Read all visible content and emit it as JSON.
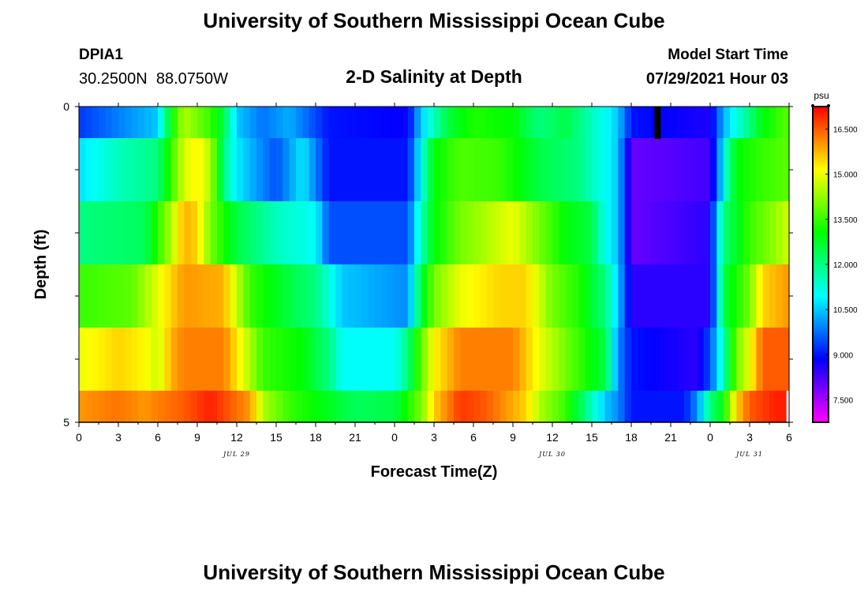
{
  "header": {
    "title": "University of Southern Mississippi Ocean Cube",
    "station_id": "DPIA1",
    "coordinates": "30.2500N  88.0750W",
    "chart_title": "2-D Salinity at Depth",
    "model_start_label": "Model Start Time",
    "model_start_value": "07/29/2021 Hour 03"
  },
  "footer": {
    "title": "University of Southern Mississippi Ocean Cube"
  },
  "colors": {
    "background": "#ffffff",
    "axis": "#000000",
    "marker": "#000000"
  },
  "chart_data": {
    "type": "heatmap",
    "title": "2-D Salinity at Depth",
    "xlabel": "Forecast Time(Z)",
    "ylabel": "Depth (ft)",
    "x_tick_labels": [
      "0",
      "3",
      "6",
      "9",
      "12",
      "15",
      "18",
      "21",
      "0",
      "3",
      "6",
      "9",
      "12",
      "15",
      "18",
      "21",
      "0",
      "3",
      "6"
    ],
    "date_labels": [
      {
        "label": "JUL 29",
        "tick_index": 4
      },
      {
        "label": "JUL 30",
        "tick_index": 12
      },
      {
        "label": "JUL 31",
        "tick_index": 17
      }
    ],
    "x_range_hours": [
      0,
      54
    ],
    "y_tick_labels": [
      "0",
      "5"
    ],
    "y_range_ft": [
      0,
      5
    ],
    "depth_rows_ft": [
      0.25,
      1.0,
      2.0,
      3.0,
      4.0,
      4.75
    ],
    "colorbar": {
      "unit": "psu",
      "min": 6.75,
      "max": 17.25,
      "tick_values": [
        "16.500",
        "15.000",
        "13.500",
        "12.000",
        "10.500",
        "9.000",
        "7.500"
      ]
    },
    "series": [
      {
        "name": "depth 0.25 ft",
        "keys": [
          [
            0,
            9.3
          ],
          [
            6,
            10.5
          ],
          [
            7,
            13
          ],
          [
            8,
            14.5
          ],
          [
            10,
            13.5
          ],
          [
            11,
            12.5
          ],
          [
            12,
            10.5
          ],
          [
            14,
            9.8
          ],
          [
            16,
            10.3
          ],
          [
            19,
            9
          ],
          [
            25,
            8.8
          ],
          [
            26,
            10.5
          ],
          [
            27,
            11.5
          ],
          [
            28,
            12.5
          ],
          [
            30,
            13.3
          ],
          [
            33,
            13
          ],
          [
            35,
            12
          ],
          [
            37,
            12.5
          ],
          [
            40,
            11
          ],
          [
            41,
            10.5
          ],
          [
            42,
            9
          ],
          [
            48,
            8.6
          ],
          [
            49,
            10.3
          ],
          [
            51,
            12
          ],
          [
            52,
            13
          ],
          [
            54,
            13.8
          ]
        ]
      },
      {
        "name": "depth 1 ft",
        "keys": [
          [
            0,
            10.7
          ],
          [
            3,
            11.5
          ],
          [
            6,
            12
          ],
          [
            7,
            13.5
          ],
          [
            8,
            14.8
          ],
          [
            9,
            15.3
          ],
          [
            10,
            14.5
          ],
          [
            11,
            12
          ],
          [
            12,
            10.8
          ],
          [
            15,
            9.5
          ],
          [
            17,
            10.8
          ],
          [
            19,
            9
          ],
          [
            25,
            9
          ],
          [
            26,
            11
          ],
          [
            27,
            13
          ],
          [
            29,
            13.7
          ],
          [
            32,
            13.5
          ],
          [
            35,
            12.5
          ],
          [
            38,
            12
          ],
          [
            40,
            11
          ],
          [
            41,
            10.5
          ],
          [
            42,
            8
          ],
          [
            48,
            8.3
          ],
          [
            48.5,
            9.5
          ],
          [
            49,
            11
          ],
          [
            50,
            13
          ],
          [
            52,
            13.5
          ],
          [
            54,
            13.8
          ]
        ]
      },
      {
        "name": "depth 2 ft",
        "keys": [
          [
            0,
            12
          ],
          [
            5,
            12.3
          ],
          [
            7,
            14.5
          ],
          [
            8,
            15.8
          ],
          [
            9,
            15.5
          ],
          [
            10,
            14
          ],
          [
            12,
            12.5
          ],
          [
            15,
            11.5
          ],
          [
            18,
            11
          ],
          [
            19,
            9.5
          ],
          [
            25,
            9.5
          ],
          [
            26,
            11.5
          ],
          [
            27,
            13
          ],
          [
            29,
            14
          ],
          [
            31,
            14.5
          ],
          [
            33,
            15
          ],
          [
            35,
            14
          ],
          [
            37,
            13
          ],
          [
            39,
            12.5
          ],
          [
            40,
            11
          ],
          [
            41,
            10.5
          ],
          [
            42,
            8
          ],
          [
            48,
            8.5
          ],
          [
            48.5,
            10.5
          ],
          [
            49,
            12
          ],
          [
            51,
            13.5
          ],
          [
            53,
            14.3
          ],
          [
            54,
            14.8
          ]
        ]
      },
      {
        "name": "depth 3 ft",
        "keys": [
          [
            0,
            13.5
          ],
          [
            4,
            13.8
          ],
          [
            7,
            15.5
          ],
          [
            8,
            16
          ],
          [
            11,
            15.8
          ],
          [
            13,
            13.5
          ],
          [
            16,
            12.5
          ],
          [
            18,
            12
          ],
          [
            20,
            10.5
          ],
          [
            25,
            10
          ],
          [
            26,
            12.5
          ],
          [
            27,
            14
          ],
          [
            29,
            15
          ],
          [
            32,
            15.5
          ],
          [
            34,
            15.5
          ],
          [
            36,
            14
          ],
          [
            38,
            13.3
          ],
          [
            40,
            12
          ],
          [
            41,
            10.5
          ],
          [
            42,
            8.5
          ],
          [
            48,
            8.5
          ],
          [
            48.5,
            10.5
          ],
          [
            49,
            12.5
          ],
          [
            51,
            14
          ],
          [
            52,
            15.5
          ],
          [
            54,
            16
          ]
        ]
      },
      {
        "name": "depth 4 ft",
        "keys": [
          [
            0,
            15
          ],
          [
            3,
            15.5
          ],
          [
            5,
            15.2
          ],
          [
            6,
            14.7
          ],
          [
            7,
            15.8
          ],
          [
            8,
            16.2
          ],
          [
            11,
            16.2
          ],
          [
            13,
            14.5
          ],
          [
            14,
            13.5
          ],
          [
            17,
            13
          ],
          [
            19,
            12
          ],
          [
            20,
            11
          ],
          [
            24,
            11
          ],
          [
            25,
            12
          ],
          [
            26,
            13.8
          ],
          [
            27,
            15.2
          ],
          [
            29,
            16.2
          ],
          [
            33,
            16.2
          ],
          [
            35,
            15
          ],
          [
            38,
            13.5
          ],
          [
            40,
            12.5
          ],
          [
            41,
            10
          ],
          [
            42,
            9
          ],
          [
            47,
            8.5
          ],
          [
            48,
            9.5
          ],
          [
            49,
            11.5
          ],
          [
            50,
            14
          ],
          [
            51,
            15
          ],
          [
            52,
            16.5
          ],
          [
            54,
            16.5
          ]
        ]
      },
      {
        "name": "depth 4.75 ft",
        "keys": [
          [
            0,
            16
          ],
          [
            3,
            16.3
          ],
          [
            5,
            16
          ],
          [
            6,
            16.2
          ],
          [
            8,
            16.5
          ],
          [
            10,
            17
          ],
          [
            13,
            16
          ],
          [
            14,
            14.5
          ],
          [
            16,
            13.5
          ],
          [
            19,
            12.8
          ],
          [
            21,
            12.3
          ],
          [
            24,
            12.5
          ],
          [
            26,
            14
          ],
          [
            27,
            15.5
          ],
          [
            29,
            16.8
          ],
          [
            31,
            16.5
          ],
          [
            34,
            15.5
          ],
          [
            35,
            14.5
          ],
          [
            37,
            13.5
          ],
          [
            38,
            12.5
          ],
          [
            39,
            11.5
          ],
          [
            40,
            10.5
          ],
          [
            41,
            10
          ],
          [
            42,
            9
          ],
          [
            46,
            9
          ],
          [
            47,
            10
          ],
          [
            48,
            12
          ],
          [
            49,
            13
          ],
          [
            50,
            15.5
          ],
          [
            51,
            16.5
          ],
          [
            53,
            17
          ],
          [
            54,
            17
          ]
        ]
      }
    ],
    "marker": {
      "hour": 44,
      "depth_start_ft": 0,
      "depth_end_ft": 0.5
    },
    "missing_data": {
      "hour_start": 53.8,
      "hour_end": 54,
      "depth_start_ft": 4.5,
      "depth_end_ft": 5
    }
  }
}
